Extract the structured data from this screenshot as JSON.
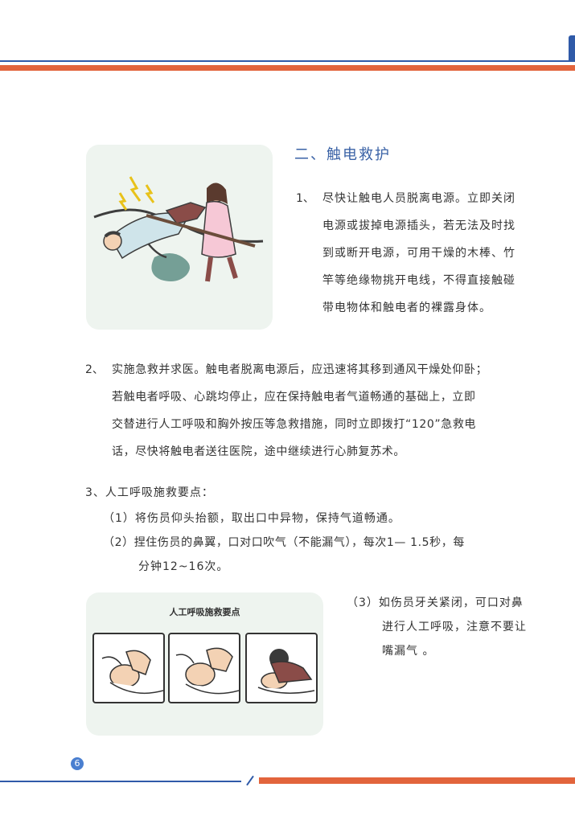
{
  "page_number": "6",
  "section": {
    "title": "二、触电救护",
    "item1": {
      "num": "1、",
      "lines": [
        "尽快让触电人员脱离电源。立即关闭",
        "电源或拔掉电源插头，若无法及时找",
        "到或断开电源，可用干燥的木棒、竹",
        "竿等绝缘物挑开电线，不得直接触碰",
        "带电物体和触电者的裸露身体。"
      ]
    },
    "item2": {
      "num": "2、",
      "lines": [
        "实施急救并求医。触电者脱离电源后，应迅速将其移到通风干燥处仰卧；",
        "若触电者呼吸、心跳均停止，应在保持触电者气道畅通的基础上，立即",
        "交替进行人工呼吸和胸外按压等急救措施，同时立即拨打“120”急救电",
        "话，尽快将触电者送往医院，途中继续进行心肺复苏术。"
      ]
    },
    "item3": {
      "heading": "3、人工呼吸施救要点：",
      "sub1": "（1）将伤员仰头抬额，取出口中异物，保持气道畅通。",
      "sub2_lines": [
        "（2）捏住伤员的鼻翼，口对口吹气（不能漏气），每次1— 1.5秒，每",
        "分钟12~16次。"
      ],
      "sub3_lines": [
        "（3）如伤员牙关紧闭，可口对鼻",
        "进行人工呼吸，注意不要让",
        "嘴漏气 。"
      ]
    }
  },
  "illustration_panel_title": "人工呼吸施救要点"
}
